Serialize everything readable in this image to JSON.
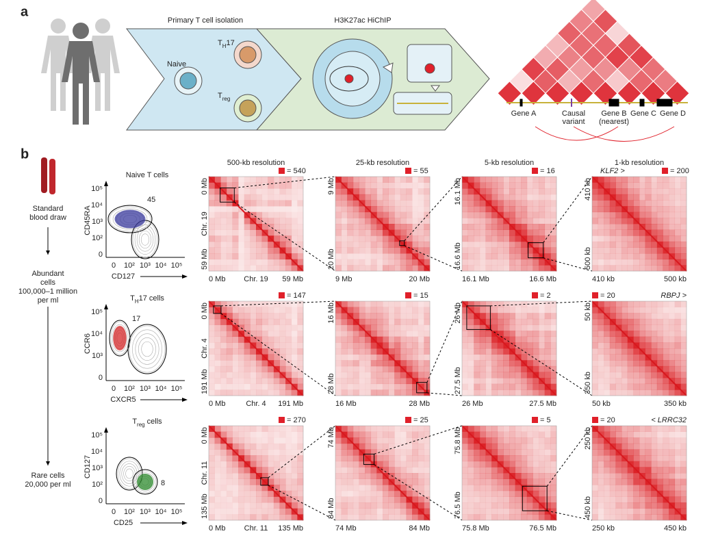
{
  "panel_a": {
    "label": "a",
    "step_1": "Primary T cell isolation",
    "step_2": "H3K27ac HiChIP",
    "naive": "Naive",
    "th17": {
      "base": "T",
      "sub": "H",
      "suffix": "17"
    },
    "treg": {
      "base": "T",
      "sub": "reg"
    },
    "genes": [
      {
        "lines": [
          "Gene A"
        ]
      },
      {
        "lines": [
          "Causal",
          "variant"
        ]
      },
      {
        "lines": [
          "Gene B",
          "(nearest)"
        ]
      },
      {
        "lines": [
          "Gene C"
        ]
      },
      {
        "lines": [
          "Gene D"
        ]
      }
    ]
  },
  "panel_b": {
    "label": "b",
    "flow": [
      [
        "Standard",
        "blood draw"
      ],
      [
        "Abundant",
        "cells",
        "100,000–1 million",
        "per ml"
      ],
      [
        "Rare cells",
        "20,000 per ml"
      ]
    ],
    "resolutions": [
      "500-kb resolution",
      "25-kb resolution",
      "5-kb resolution",
      "1-kb resolution"
    ],
    "rows": [
      {
        "facs": {
          "title": {
            "base": "Naive T cells"
          },
          "color": "#3a3a9e",
          "percent": "45",
          "xlabel": "CD127",
          "ylabel": "CD45RA",
          "xticks": [
            "0",
            "10²",
            "10³",
            "10⁴",
            "10⁵"
          ],
          "yticks": [
            "10⁵",
            "10⁴",
            "10³",
            "10²",
            "0"
          ]
        },
        "gene": "KLF2 >",
        "maps": [
          {
            "scale": "= 540",
            "y": [
              "0 Mb",
              "59 Mb"
            ],
            "x": [
              "0 Mb",
              "59 Mb"
            ],
            "chr": "Chr. 19"
          },
          {
            "scale": "= 55",
            "y": [
              "9 Mb",
              "20 Mb"
            ],
            "x": [
              "9 Mb",
              "20 Mb"
            ]
          },
          {
            "scale": "= 16",
            "y": [
              "16.1 Mb",
              "16.6 Mb"
            ],
            "x": [
              "16.1 Mb",
              "16.6 Mb"
            ]
          },
          {
            "scale": "= 200",
            "y": [
              "410 kb",
              "500 kb"
            ],
            "x": [
              "410 kb",
              "500 kb"
            ]
          }
        ]
      },
      {
        "facs": {
          "title": {
            "base": "T",
            "sub": "H",
            "suffix": "17 cells"
          },
          "color": "#d62728",
          "percent": "17",
          "xlabel": "CXCR5",
          "ylabel": "CCR6",
          "xticks": [
            "0",
            "10²",
            "10³",
            "10⁴",
            "10⁵"
          ],
          "yticks": [
            "10⁵",
            "10⁴",
            "10³",
            "0"
          ]
        },
        "gene": "RBPJ >",
        "maps": [
          {
            "scale": "= 147",
            "y": [
              "0 Mb",
              "191 Mb"
            ],
            "x": [
              "0 Mb",
              "191 Mb"
            ],
            "chr": "Chr. 4"
          },
          {
            "scale": "= 15",
            "y": [
              "16 Mb",
              "28 Mb"
            ],
            "x": [
              "16 Mb",
              "28 Mb"
            ]
          },
          {
            "scale": "= 2",
            "y": [
              "26 Mb",
              "27.5 Mb"
            ],
            "x": [
              "26 Mb",
              "27.5 Mb"
            ]
          },
          {
            "scale": "= 20",
            "y": [
              "50 kb",
              "350 kb"
            ],
            "x": [
              "50 kb",
              "350 kb"
            ]
          }
        ]
      },
      {
        "facs": {
          "title": {
            "base": "T",
            "sub": "reg",
            "suffix": " cells"
          },
          "color": "#2e8b2e",
          "percent": "8",
          "xlabel": "CD25",
          "ylabel": "CD127",
          "xticks": [
            "0",
            "10²",
            "10³",
            "10⁴",
            "10⁵"
          ],
          "yticks": [
            "10⁵",
            "10⁴",
            "10³",
            "10²",
            "0"
          ]
        },
        "gene": "< LRRC32",
        "maps": [
          {
            "scale": "= 270",
            "y": [
              "0 Mb",
              "135 Mb"
            ],
            "x": [
              "0 Mb",
              "135 Mb"
            ],
            "chr": "Chr. 11"
          },
          {
            "scale": "= 25",
            "y": [
              "74 Mb",
              "84 Mb"
            ],
            "x": [
              "74 Mb",
              "84 Mb"
            ]
          },
          {
            "scale": "= 5",
            "y": [
              "75.8 Mb",
              "76.5 Mb"
            ],
            "x": [
              "75.8 Mb",
              "76.5 Mb"
            ]
          },
          {
            "scale": "= 20",
            "y": [
              "250 kb",
              "450 kb"
            ],
            "x": [
              "250 kb",
              "450 kb"
            ]
          }
        ]
      }
    ]
  }
}
